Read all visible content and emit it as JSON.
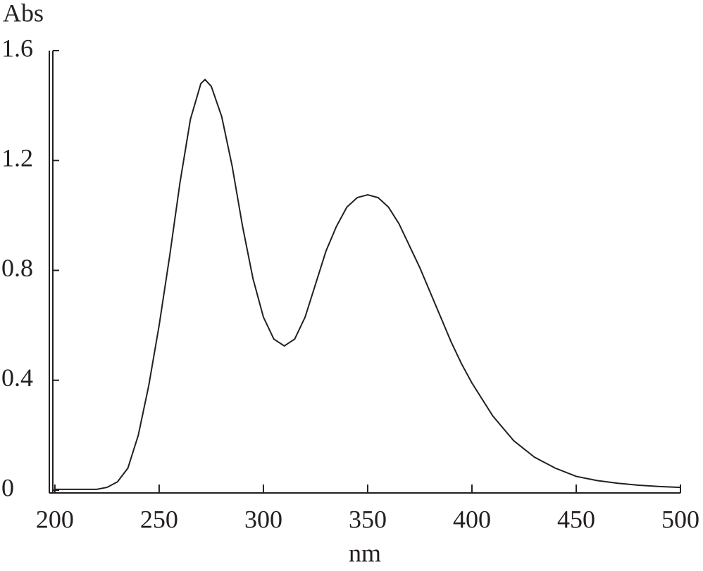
{
  "chart_data": {
    "type": "line",
    "x_label": "nm",
    "y_label": "Abs",
    "x": [
      200,
      220,
      225,
      230,
      235,
      240,
      245,
      250,
      255,
      260,
      265,
      270,
      272,
      275,
      280,
      285,
      290,
      295,
      300,
      305,
      310,
      315,
      320,
      325,
      330,
      335,
      340,
      345,
      350,
      355,
      360,
      365,
      370,
      375,
      380,
      385,
      390,
      395,
      400,
      410,
      420,
      430,
      440,
      450,
      460,
      470,
      480,
      490,
      500
    ],
    "series": [
      {
        "color": "#231f20",
        "values": [
          0.003,
          0.003,
          0.01,
          0.03,
          0.08,
          0.2,
          0.38,
          0.6,
          0.85,
          1.12,
          1.35,
          1.48,
          1.495,
          1.47,
          1.36,
          1.18,
          0.96,
          0.77,
          0.63,
          0.55,
          0.525,
          0.55,
          0.63,
          0.75,
          0.87,
          0.96,
          1.03,
          1.065,
          1.075,
          1.065,
          1.03,
          0.97,
          0.89,
          0.81,
          0.72,
          0.63,
          0.54,
          0.46,
          0.39,
          0.27,
          0.18,
          0.12,
          0.08,
          0.05,
          0.035,
          0.025,
          0.018,
          0.013,
          0.01
        ]
      }
    ],
    "xlim": [
      198,
      500
    ],
    "xticks": [
      200,
      250,
      300,
      350,
      400,
      450,
      500
    ],
    "ylim": [
      0,
      1.6
    ],
    "yticks": [
      0,
      0.4,
      0.8,
      1.2,
      1.6
    ]
  }
}
